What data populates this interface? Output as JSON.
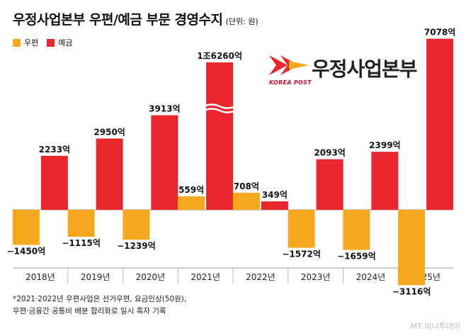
{
  "header": {
    "title": "우정사업본부 우편/예금 부문 경영수지",
    "unit": "(단위: 원)"
  },
  "legend": [
    {
      "label": "우편",
      "color": "#f5a81c"
    },
    {
      "label": "예금",
      "color": "#e8262b"
    }
  ],
  "logo": {
    "wordmark": "우정사업본부",
    "sub": "KOREA POST"
  },
  "note": {
    "line1": "*2021·2022년 우편사업은 선거우편, 요금인상(50원),",
    "line2": "우편·금융간 공통비 배분 합리화로 일시 흑자 기록"
  },
  "credit": "MT 머니투데이",
  "chart_data": {
    "type": "bar",
    "categories": [
      "2018년",
      "2019년",
      "2020년",
      "2021년",
      "2022년",
      "2023년",
      "2024년",
      "2025년"
    ],
    "series": [
      {
        "name": "우편",
        "color": "#f5a81c",
        "values": [
          -1450,
          -1115,
          -1239,
          559,
          708,
          -1572,
          -1659,
          -3116
        ],
        "labels": [
          "-1450억",
          "-1115억",
          "-1239억",
          "559억",
          "708억",
          "-1572억",
          "-1659억",
          "-3116억"
        ]
      },
      {
        "name": "예금",
        "color": "#e8262b",
        "values": [
          2233,
          2950,
          3913,
          16260,
          349,
          2093,
          2399,
          7078
        ],
        "labels": [
          "2233억",
          "2950억",
          "3913억",
          "1조6260억",
          "349억",
          "2093억",
          "2399억",
          "7078억"
        ]
      }
    ],
    "axis_break": {
      "category": "2021년",
      "series": "예금"
    },
    "zero_line": true,
    "grid": false
  }
}
